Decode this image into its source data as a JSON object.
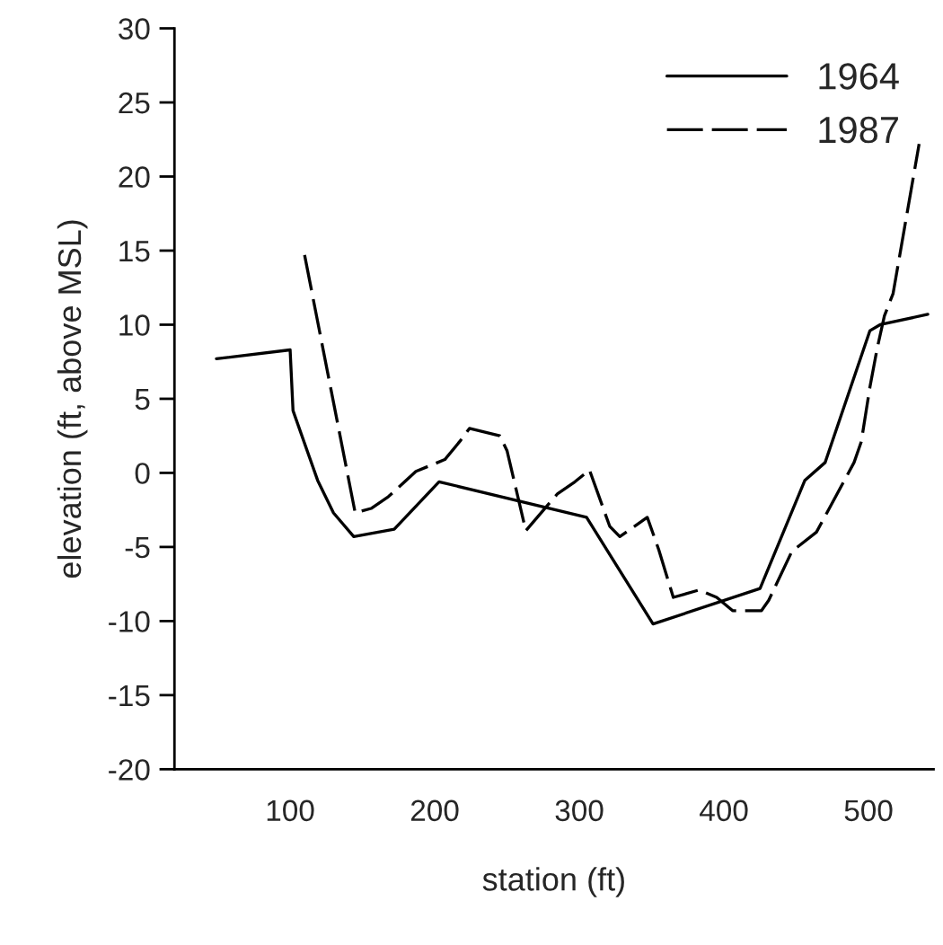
{
  "chart_data": {
    "type": "line",
    "xlabel": "station (ft)",
    "ylabel": "elevation (ft, above MSL)",
    "xlim": [
      20,
      545
    ],
    "xticks": [
      100,
      200,
      300,
      400,
      500
    ],
    "ylim": [
      -20,
      30
    ],
    "yticks": [
      -20,
      -15,
      -10,
      -5,
      0,
      5,
      10,
      15,
      20,
      25,
      30
    ],
    "legend": "top right",
    "grid": false,
    "marker": "none",
    "series": [
      {
        "name": "1964",
        "color": "#000000",
        "line_style": "solid",
        "x": [
          49,
          100,
          102,
          119,
          130,
          144,
          172,
          203,
          305,
          351,
          425,
          456,
          470,
          501,
          508,
          541
        ],
        "values": [
          7.7,
          8.3,
          4.2,
          -0.5,
          -2.7,
          -4.3,
          -3.8,
          -0.6,
          -3.0,
          -10.2,
          -7.8,
          -0.5,
          0.7,
          9.6,
          10.0,
          10.7
        ]
      },
      {
        "name": "1987",
        "color": "#000000",
        "line_style": "dashed",
        "x": [
          110,
          145,
          156,
          168,
          187,
          207,
          218,
          224,
          245,
          250,
          263,
          285,
          297,
          307,
          321,
          328,
          347,
          355,
          365,
          383,
          395,
          406,
          426,
          431,
          447,
          464,
          490,
          495,
          501,
          506,
          511,
          517,
          535
        ],
        "values": [
          14.7,
          -2.7,
          -2.4,
          -1.6,
          0.1,
          0.9,
          2.2,
          3.0,
          2.5,
          1.5,
          -3.9,
          -1.4,
          -0.6,
          0.2,
          -3.6,
          -4.3,
          -3.0,
          -5.2,
          -8.4,
          -7.9,
          -8.4,
          -9.3,
          -9.3,
          -8.6,
          -5.3,
          -4.0,
          0.7,
          2.1,
          5.8,
          8.4,
          10.6,
          12.1,
          22.2
        ]
      }
    ]
  }
}
